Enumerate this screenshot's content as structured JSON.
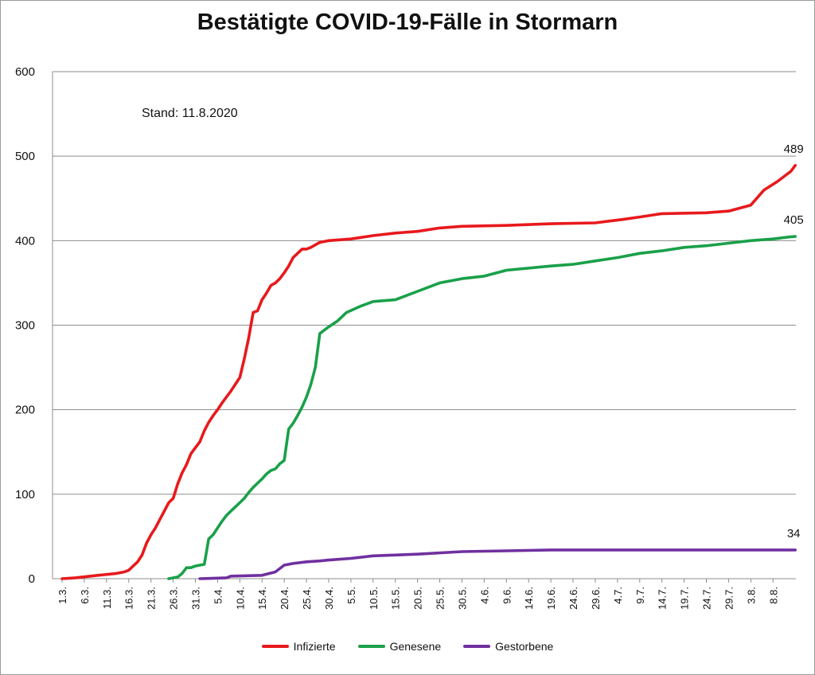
{
  "chart_data": {
    "type": "line",
    "title": "Bestätigte COVID-19-Fälle in Stormarn",
    "annotation": "Stand: 11.8.2020",
    "ylim": [
      0,
      600
    ],
    "yticks": [
      0,
      100,
      200,
      300,
      400,
      500,
      600
    ],
    "grid": true,
    "legend_position": "bottom",
    "x": [
      "1.3.",
      "6.3.",
      "11.3.",
      "16.3.",
      "21.3.",
      "26.3.",
      "31.3.",
      "5.4.",
      "10.4.",
      "15.4.",
      "20.4.",
      "25.4.",
      "30.4.",
      "5.5.",
      "10.5.",
      "15.5.",
      "20.5.",
      "25.5.",
      "30.5.",
      "4.6.",
      "9.6.",
      "14.6.",
      "19.6.",
      "24.6.",
      "29.6.",
      "4.7.",
      "9.7.",
      "14.7.",
      "19.7.",
      "24.7.",
      "29.7.",
      "3.8.",
      "8.8."
    ],
    "x_range_days": [
      0,
      163
    ],
    "series": [
      {
        "name": "Infizierte",
        "color": "#e8191c",
        "end_label": "489",
        "points": [
          [
            0,
            0
          ],
          [
            3,
            1
          ],
          [
            8,
            4
          ],
          [
            12,
            6
          ],
          [
            14,
            8
          ],
          [
            15,
            10
          ],
          [
            16,
            15
          ],
          [
            17,
            20
          ],
          [
            18,
            28
          ],
          [
            19,
            42
          ],
          [
            20,
            52
          ],
          [
            21,
            60
          ],
          [
            22,
            70
          ],
          [
            23,
            80
          ],
          [
            24,
            90
          ],
          [
            25,
            95
          ],
          [
            26,
            112
          ],
          [
            27,
            125
          ],
          [
            28,
            135
          ],
          [
            29,
            148
          ],
          [
            30,
            155
          ],
          [
            31,
            162
          ],
          [
            32,
            175
          ],
          [
            33,
            185
          ],
          [
            34,
            193
          ],
          [
            35,
            200
          ],
          [
            36,
            208
          ],
          [
            37,
            215
          ],
          [
            38,
            222
          ],
          [
            39,
            230
          ],
          [
            40,
            238
          ],
          [
            41,
            260
          ],
          [
            42,
            285
          ],
          [
            43,
            315
          ],
          [
            44,
            317
          ],
          [
            45,
            330
          ],
          [
            46,
            338
          ],
          [
            47,
            347
          ],
          [
            48,
            350
          ],
          [
            49,
            355
          ],
          [
            50,
            362
          ],
          [
            51,
            370
          ],
          [
            52,
            380
          ],
          [
            53,
            385
          ],
          [
            54,
            390
          ],
          [
            55,
            390
          ],
          [
            56,
            392
          ],
          [
            57,
            395
          ],
          [
            58,
            398
          ],
          [
            60,
            400
          ],
          [
            65,
            402
          ],
          [
            70,
            406
          ],
          [
            75,
            409
          ],
          [
            80,
            411
          ],
          [
            85,
            415
          ],
          [
            90,
            417
          ],
          [
            100,
            418
          ],
          [
            110,
            420
          ],
          [
            120,
            421
          ],
          [
            126,
            425
          ],
          [
            130,
            428
          ],
          [
            135,
            432
          ],
          [
            145,
            433
          ],
          [
            150,
            435
          ],
          [
            155,
            442
          ],
          [
            158,
            460
          ],
          [
            161,
            470
          ],
          [
            163,
            478
          ],
          [
            164,
            482
          ],
          [
            165,
            489
          ]
        ]
      },
      {
        "name": "Genesene",
        "color": "#1aa04a",
        "end_label": "405",
        "points": [
          [
            24,
            0
          ],
          [
            26,
            2
          ],
          [
            27,
            6
          ],
          [
            28,
            13
          ],
          [
            29,
            13
          ],
          [
            30,
            15
          ],
          [
            31,
            16
          ],
          [
            32,
            17
          ],
          [
            33,
            47
          ],
          [
            34,
            52
          ],
          [
            35,
            60
          ],
          [
            36,
            68
          ],
          [
            37,
            75
          ],
          [
            38,
            80
          ],
          [
            39,
            85
          ],
          [
            40,
            90
          ],
          [
            41,
            95
          ],
          [
            42,
            102
          ],
          [
            43,
            108
          ],
          [
            44,
            113
          ],
          [
            45,
            118
          ],
          [
            46,
            124
          ],
          [
            47,
            128
          ],
          [
            48,
            130
          ],
          [
            49,
            136
          ],
          [
            50,
            140
          ],
          [
            51,
            177
          ],
          [
            52,
            184
          ],
          [
            53,
            193
          ],
          [
            54,
            203
          ],
          [
            55,
            215
          ],
          [
            56,
            230
          ],
          [
            57,
            250
          ],
          [
            58,
            290
          ],
          [
            60,
            298
          ],
          [
            62,
            305
          ],
          [
            64,
            315
          ],
          [
            67,
            322
          ],
          [
            70,
            328
          ],
          [
            75,
            330
          ],
          [
            80,
            340
          ],
          [
            85,
            350
          ],
          [
            90,
            355
          ],
          [
            95,
            358
          ],
          [
            100,
            365
          ],
          [
            110,
            370
          ],
          [
            115,
            372
          ],
          [
            120,
            376
          ],
          [
            125,
            380
          ],
          [
            130,
            385
          ],
          [
            135,
            388
          ],
          [
            140,
            392
          ],
          [
            145,
            394
          ],
          [
            150,
            397
          ],
          [
            155,
            400
          ],
          [
            160,
            402
          ],
          [
            163,
            404
          ],
          [
            165,
            405
          ]
        ]
      },
      {
        "name": "Gestorbene",
        "color": "#7030a0",
        "end_label": "34",
        "points": [
          [
            31,
            0
          ],
          [
            37,
            1
          ],
          [
            38,
            3
          ],
          [
            45,
            4
          ],
          [
            48,
            8
          ],
          [
            50,
            16
          ],
          [
            52,
            18
          ],
          [
            55,
            20
          ],
          [
            58,
            21
          ],
          [
            60,
            22
          ],
          [
            65,
            24
          ],
          [
            70,
            27
          ],
          [
            80,
            29
          ],
          [
            90,
            32
          ],
          [
            100,
            33
          ],
          [
            110,
            34
          ],
          [
            165,
            34
          ]
        ]
      }
    ]
  }
}
